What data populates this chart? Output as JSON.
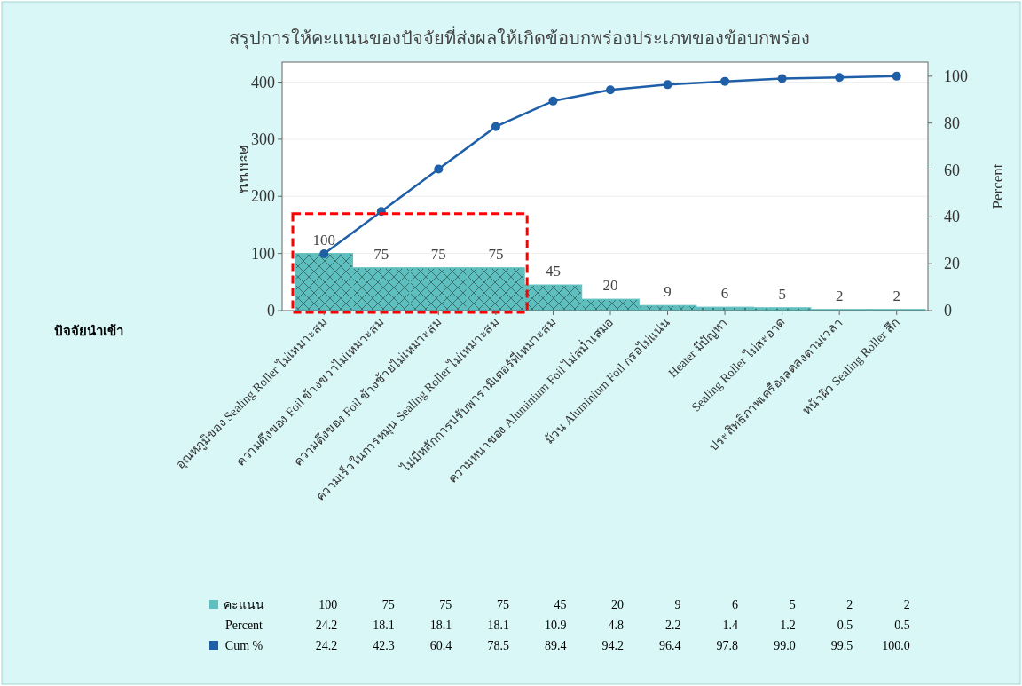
{
  "chart_data": {
    "type": "bar",
    "title": "สรุปการให้คะแนนของปัจจัยที่ส่งผลให้เกิดข้อบกพร่องประเภทของข้อบกพร่อง",
    "xlabel": "ปัจจัยนำเข้า",
    "ylabel": "คะแนน",
    "y2label": "Percent",
    "categories": [
      "อุณหภูมิของ Sealing Roller ไม่เหมาะสม",
      "ความตึงของ Foil ข้างขวาไม่เหมาะสม",
      "ความตึงของ Foil ข้างซ้ายไม่เหมาะสม",
      "ความเร็วในการหมุน Sealing Roller ไม่เหมาะสม",
      "ไม่มีหลักการปรับพารามิเตอร์ที่เหมาะสม",
      "ความหนาของ Aluminium Foil ไม่สม่ำเสมอ",
      "ม้วน Aluminium Foil กรอไม่แน่น",
      "Heater มีปัญหา",
      "Sealing Roller ไม่สะอาด",
      "ประสิทธิภาพเครื่องลดลงตามเวลา",
      "หน้าผิว Sealing Roller สึก"
    ],
    "series": [
      {
        "name": "คะแนน",
        "color": "#5fbfbf",
        "values": [
          100,
          75,
          75,
          75,
          45,
          20,
          9,
          6,
          5,
          2,
          2
        ],
        "value_labels": [
          "100",
          "75",
          "75",
          "75",
          "45",
          "20",
          "9",
          "6",
          "5",
          "2",
          "2"
        ]
      },
      {
        "name": "Cum %",
        "type": "line",
        "axis": "y2",
        "color": "#1f5fa8",
        "values": [
          24.2,
          42.3,
          60.4,
          78.5,
          89.4,
          94.2,
          96.4,
          97.8,
          99.0,
          99.5,
          100.0
        ],
        "value_labels": [
          "24.2",
          "42.3",
          "60.4",
          "78.5",
          "89.4",
          "94.2",
          "96.4",
          "97.8",
          "99.0",
          "99.5",
          "100.0"
        ]
      }
    ],
    "ylim": [
      0,
      435
    ],
    "yticks": [
      0,
      100,
      200,
      300,
      400
    ],
    "y2lim": [
      0,
      106
    ],
    "y2ticks": [
      0,
      20,
      40,
      60,
      80,
      100
    ],
    "grid": "y",
    "legend": "bottom left",
    "marker": "circle",
    "line_style": "solid",
    "annotations": [
      "Percent",
      "24.2",
      "18.1",
      "18.1",
      "18.1",
      "10.9",
      "4.8",
      "2.2",
      "1.4",
      "1.2",
      "0.5",
      "0.5"
    ]
  }
}
